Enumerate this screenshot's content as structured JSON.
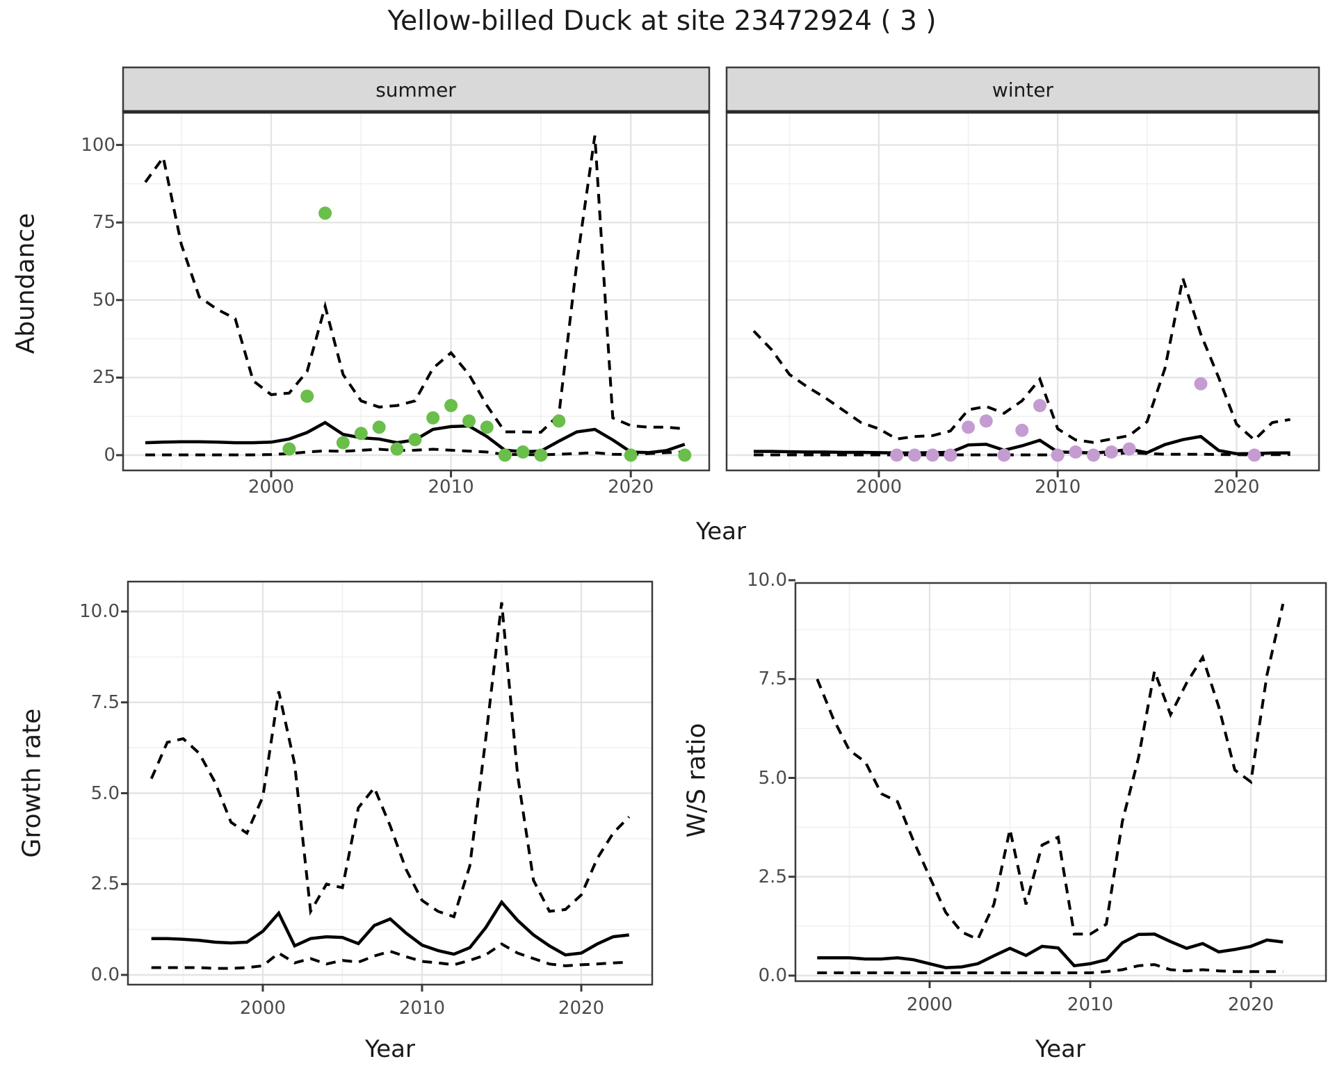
{
  "title": "Yellow-billed Duck at site 23472924 ( 3 )",
  "facet_labels": {
    "summer": "summer",
    "winter": "winter"
  },
  "axis_labels": {
    "top_y": "Abundance",
    "top_x": "Year",
    "growth_y": "Growth rate",
    "growth_x": "Year",
    "ws_y": "W/S ratio",
    "ws_x": "Year"
  },
  "colors": {
    "summer_points": "#6ABE4A",
    "winter_points": "#C49CD2",
    "line": "#000000",
    "grid_major": "#e4e4e4",
    "grid_minor": "#f0f0f0",
    "panel_border": "#3a3a3a",
    "strip_bg": "#d9d9d9",
    "tick_text": "#4a4a4a"
  },
  "chart_data": [
    {
      "id": "summer",
      "type": "line",
      "facet": "summer",
      "title": "Yellow-billed Duck at site 23472924 ( 3 )",
      "xlabel": "Year",
      "ylabel": "Abundance",
      "xlim": [
        1991.5,
        2024.5
      ],
      "ylim": [
        0,
        110
      ],
      "x_ticks": {
        "values": [
          2000,
          2010,
          2020
        ],
        "labels": [
          "2000",
          "2010",
          "2020"
        ]
      },
      "y_ticks": {
        "values": [
          0,
          25,
          50,
          75,
          100
        ],
        "labels": [
          "0",
          "25",
          "50",
          "75",
          "100"
        ]
      },
      "x_minor": [
        1995,
        2005,
        2015
      ],
      "y_minor": [
        12.5,
        37.5,
        62.5,
        87.5,
        112.5
      ],
      "series": [
        {
          "name": "ci_lower",
          "style": "dashed",
          "x": [
            1993,
            1994,
            1995,
            1996,
            1997,
            1998,
            1999,
            2000,
            2001,
            2002,
            2003,
            2004,
            2005,
            2006,
            2007,
            2008,
            2009,
            2010,
            2011,
            2012,
            2013,
            2014,
            2015,
            2016,
            2017,
            2018,
            2019,
            2020,
            2021,
            2022,
            2023
          ],
          "y": [
            0.1,
            0.1,
            0.1,
            0.1,
            0.1,
            0.1,
            0.1,
            0.2,
            0.5,
            1,
            1.4,
            1.2,
            1.6,
            1.9,
            1.5,
            1.6,
            1.9,
            1.6,
            1.3,
            1,
            0.2,
            0.2,
            0.1,
            0.3,
            0.5,
            0.8,
            0.3,
            0.2,
            0.5,
            0.8,
            1
          ]
        },
        {
          "name": "ci_upper",
          "style": "dashed",
          "x": [
            1993,
            1994,
            1995,
            1996,
            1997,
            1998,
            1999,
            2000,
            2001,
            2002,
            2003,
            2004,
            2005,
            2006,
            2007,
            2008,
            2009,
            2010,
            2011,
            2012,
            2013,
            2014,
            2015,
            2016,
            2017,
            2018,
            2019,
            2020,
            2021,
            2022,
            2023
          ],
          "y": [
            88,
            96,
            68,
            51,
            47,
            44,
            24,
            19.5,
            20,
            27,
            48,
            26,
            17.5,
            15.5,
            16,
            17.5,
            28,
            33,
            26,
            16,
            7.5,
            7.5,
            7.4,
            13,
            62,
            103,
            12,
            9.5,
            9,
            9,
            8.5
          ]
        },
        {
          "name": "median",
          "style": "solid",
          "x": [
            1993,
            1994,
            1995,
            1996,
            1997,
            1998,
            1999,
            2000,
            2001,
            2002,
            2003,
            2004,
            2005,
            2006,
            2007,
            2008,
            2009,
            2010,
            2011,
            2012,
            2013,
            2014,
            2015,
            2016,
            2017,
            2018,
            2019,
            2020,
            2021,
            2022,
            2023
          ],
          "y": [
            4,
            4.2,
            4.3,
            4.3,
            4.2,
            4,
            4,
            4.2,
            5.2,
            7.3,
            10.5,
            6.7,
            5.6,
            5.2,
            4,
            4.9,
            8.3,
            9.2,
            9.4,
            6,
            1.6,
            1.1,
            1.3,
            4.5,
            7.5,
            8.3,
            4.9,
            1,
            0.8,
            1.5,
            3.5
          ]
        }
      ],
      "points": {
        "name": "observed_abundance",
        "color": "#6ABE4A",
        "x": [
          2001,
          2002,
          2003,
          2004,
          2005,
          2006,
          2007,
          2008,
          2009,
          2010,
          2011,
          2012,
          2013,
          2014,
          2015,
          2016,
          2020,
          2023
        ],
        "y": [
          2,
          19,
          78,
          4,
          7,
          9,
          2,
          5,
          12,
          16,
          11,
          9,
          0,
          1,
          0,
          11,
          0,
          0
        ]
      }
    },
    {
      "id": "winter",
      "type": "line",
      "facet": "winter",
      "title": "Yellow-billed Duck at site 23472924 ( 3 )",
      "xlabel": "Year",
      "ylabel": "Abundance",
      "xlim": [
        1991.5,
        2024.5
      ],
      "ylim": [
        0,
        110
      ],
      "x_ticks": {
        "values": [
          2000,
          2010,
          2020
        ],
        "labels": [
          "2000",
          "2010",
          "2020"
        ]
      },
      "y_ticks": {
        "values": [
          0,
          25,
          50,
          75,
          100
        ],
        "labels": [
          "0",
          "25",
          "50",
          "75",
          "100"
        ]
      },
      "x_minor": [
        1995,
        2005,
        2015
      ],
      "y_minor": [
        12.5,
        37.5,
        62.5,
        87.5,
        112.5
      ],
      "series": [
        {
          "name": "ci_lower",
          "style": "dashed",
          "x": [
            1993,
            1994,
            1995,
            1996,
            1997,
            1998,
            1999,
            2000,
            2001,
            2002,
            2003,
            2004,
            2005,
            2006,
            2007,
            2008,
            2009,
            2010,
            2011,
            2012,
            2013,
            2014,
            2015,
            2016,
            2017,
            2018,
            2019,
            2020,
            2021,
            2022,
            2023
          ],
          "y": [
            0.1,
            0.1,
            0.1,
            0.1,
            0.1,
            0.1,
            0.1,
            0.1,
            0.1,
            0.1,
            0.1,
            0.1,
            0.1,
            0.1,
            0.1,
            0.1,
            0.1,
            0.1,
            0.1,
            0.1,
            0.3,
            0.8,
            0.5,
            0.3,
            0.3,
            0.3,
            0.2,
            0.15,
            0.1,
            0.15,
            0.2
          ]
        },
        {
          "name": "ci_upper",
          "style": "dashed",
          "x": [
            1993,
            1994,
            1995,
            1996,
            1997,
            1998,
            1999,
            2000,
            2001,
            2002,
            2003,
            2004,
            2005,
            2006,
            2007,
            2008,
            2009,
            2010,
            2011,
            2012,
            2013,
            2014,
            2015,
            2016,
            2017,
            2018,
            2019,
            2020,
            2021,
            2022,
            2023
          ],
          "y": [
            40,
            34,
            26,
            22,
            18.5,
            14.5,
            10.5,
            8.5,
            5.2,
            6,
            6.3,
            7.8,
            14.6,
            15.7,
            13.5,
            17.5,
            24.5,
            8.5,
            4.9,
            4.1,
            5.2,
            6.3,
            10.8,
            28,
            57,
            39,
            25,
            10,
            4.9,
            10.5,
            11.5
          ]
        },
        {
          "name": "median",
          "style": "solid",
          "x": [
            1993,
            1994,
            1995,
            1996,
            1997,
            1998,
            1999,
            2000,
            2001,
            2002,
            2003,
            2004,
            2005,
            2006,
            2007,
            2008,
            2009,
            2010,
            2011,
            2012,
            2013,
            2014,
            2015,
            2016,
            2017,
            2018,
            2019,
            2020,
            2021,
            2022,
            2023
          ],
          "y": [
            1.2,
            1.2,
            1.1,
            1,
            1,
            0.9,
            0.9,
            0.8,
            0.7,
            0.7,
            0.8,
            0.9,
            3.3,
            3.5,
            1.6,
            3,
            4.8,
            1,
            0.9,
            0.7,
            1.1,
            1.9,
            0.8,
            3.4,
            5,
            6,
            1.5,
            0.45,
            0.5,
            0.7,
            0.75
          ]
        }
      ],
      "points": {
        "name": "observed_abundance",
        "color": "#C49CD2",
        "x": [
          2001,
          2002,
          2003,
          2004,
          2005,
          2006,
          2007,
          2008,
          2009,
          2010,
          2011,
          2012,
          2013,
          2014,
          2018,
          2021
        ],
        "y": [
          0,
          0,
          0,
          0,
          9,
          11,
          0,
          8,
          16,
          0,
          1,
          0,
          1,
          2,
          23,
          0
        ]
      }
    },
    {
      "id": "growth_rate",
      "type": "line",
      "title": "Growth rate",
      "xlabel": "Year",
      "ylabel": "Growth rate",
      "xlim": [
        1991.5,
        2024.5
      ],
      "ylim": [
        0,
        10.8
      ],
      "x_ticks": {
        "values": [
          2000,
          2010,
          2020
        ],
        "labels": [
          "2000",
          "2010",
          "2020"
        ]
      },
      "y_ticks": {
        "values": [
          0,
          2.5,
          5,
          7.5,
          10
        ],
        "labels": [
          "0.0",
          "2.5",
          "5.0",
          "7.5",
          "10.0"
        ]
      },
      "x_minor": [
        1995,
        2005,
        2015
      ],
      "y_minor": [
        1.25,
        3.75,
        6.25,
        8.75
      ],
      "series": [
        {
          "name": "ci_lower",
          "style": "dashed",
          "x": [
            1993,
            1994,
            1995,
            1996,
            1997,
            1998,
            1999,
            2000,
            2001,
            2002,
            2003,
            2004,
            2005,
            2006,
            2007,
            2008,
            2009,
            2010,
            2011,
            2012,
            2013,
            2014,
            2015,
            2016,
            2017,
            2018,
            2019,
            2020,
            2021,
            2022,
            2023
          ],
          "y": [
            0.2,
            0.2,
            0.2,
            0.2,
            0.18,
            0.18,
            0.2,
            0.25,
            0.6,
            0.33,
            0.45,
            0.3,
            0.4,
            0.35,
            0.52,
            0.65,
            0.5,
            0.37,
            0.33,
            0.28,
            0.4,
            0.55,
            0.85,
            0.6,
            0.45,
            0.3,
            0.25,
            0.28,
            0.3,
            0.33,
            0.35
          ]
        },
        {
          "name": "ci_upper",
          "style": "dashed",
          "x": [
            1993,
            1994,
            1995,
            1996,
            1997,
            1998,
            1999,
            2000,
            2001,
            2002,
            2003,
            2004,
            2005,
            2006,
            2007,
            2008,
            2009,
            2010,
            2011,
            2012,
            2013,
            2014,
            2015,
            2016,
            2017,
            2018,
            2019,
            2020,
            2021,
            2022,
            2023
          ],
          "y": [
            5.4,
            6.4,
            6.5,
            6.1,
            5.3,
            4.2,
            3.9,
            4.9,
            7.8,
            5.8,
            1.75,
            2.5,
            2.4,
            4.6,
            5.15,
            4.1,
            2.9,
            2.05,
            1.75,
            1.6,
            3,
            6.5,
            10.25,
            5.5,
            2.6,
            1.75,
            1.8,
            2.2,
            3.2,
            3.9,
            4.35
          ]
        },
        {
          "name": "median",
          "style": "solid",
          "x": [
            1993,
            1994,
            1995,
            1996,
            1997,
            1998,
            1999,
            2000,
            2001,
            2002,
            2003,
            2004,
            2005,
            2006,
            2007,
            2008,
            2009,
            2010,
            2011,
            2012,
            2013,
            2014,
            2015,
            2016,
            2017,
            2018,
            2019,
            2020,
            2021,
            2022,
            2023
          ],
          "y": [
            1,
            1,
            0.98,
            0.95,
            0.9,
            0.88,
            0.9,
            1.2,
            1.7,
            0.8,
            1,
            1.05,
            1.03,
            0.86,
            1.36,
            1.54,
            1.15,
            0.82,
            0.67,
            0.57,
            0.75,
            1.3,
            2,
            1.5,
            1.1,
            0.8,
            0.55,
            0.6,
            0.85,
            1.05,
            1.1
          ]
        }
      ]
    },
    {
      "id": "ws_ratio",
      "type": "line",
      "title": "W/S ratio",
      "xlabel": "Year",
      "ylabel": "W/S ratio",
      "xlim": [
        1991.5,
        2024.5
      ],
      "ylim": [
        0,
        9.9
      ],
      "x_ticks": {
        "values": [
          2000,
          2010,
          2020
        ],
        "labels": [
          "2000",
          "2010",
          "2020"
        ]
      },
      "y_ticks": {
        "values": [
          0,
          2.5,
          5,
          7.5,
          10
        ],
        "labels": [
          "0.0",
          "2.5",
          "5.0",
          "7.5",
          "10.0"
        ]
      },
      "x_minor": [
        1995,
        2005,
        2015
      ],
      "y_minor": [
        1.25,
        3.75,
        6.25,
        8.75
      ],
      "series": [
        {
          "name": "ci_lower",
          "style": "dashed",
          "x": [
            1993,
            1994,
            1995,
            1996,
            1997,
            1998,
            1999,
            2000,
            2001,
            2002,
            2003,
            2004,
            2005,
            2006,
            2007,
            2008,
            2009,
            2010,
            2011,
            2012,
            2013,
            2014,
            2015,
            2016,
            2017,
            2018,
            2019,
            2020,
            2021,
            2022
          ],
          "y": [
            0.07,
            0.07,
            0.07,
            0.07,
            0.07,
            0.07,
            0.07,
            0.07,
            0.07,
            0.07,
            0.07,
            0.07,
            0.07,
            0.07,
            0.07,
            0.07,
            0.07,
            0.07,
            0.1,
            0.15,
            0.25,
            0.28,
            0.15,
            0.12,
            0.15,
            0.12,
            0.1,
            0.1,
            0.1,
            0.1
          ]
        },
        {
          "name": "ci_upper",
          "style": "dashed",
          "x": [
            1993,
            1994,
            1995,
            1996,
            1997,
            1998,
            1999,
            2000,
            2001,
            2002,
            2003,
            2004,
            2005,
            2006,
            2007,
            2008,
            2009,
            2010,
            2011,
            2012,
            2013,
            2014,
            2015,
            2016,
            2017,
            2018,
            2019,
            2020,
            2021,
            2022
          ],
          "y": [
            7.5,
            6.5,
            5.7,
            5.4,
            4.6,
            4.4,
            3.4,
            2.5,
            1.6,
            1.1,
            0.92,
            1.8,
            3.7,
            1.8,
            3.3,
            3.5,
            1.05,
            1.05,
            1.3,
            3.9,
            5.5,
            7.7,
            6.6,
            7.4,
            8.05,
            6.8,
            5.2,
            4.9,
            7.6,
            9.4
          ]
        },
        {
          "name": "median",
          "style": "solid",
          "x": [
            1993,
            1994,
            1995,
            1996,
            1997,
            1998,
            1999,
            2000,
            2001,
            2002,
            2003,
            2004,
            2005,
            2006,
            2007,
            2008,
            2009,
            2010,
            2011,
            2012,
            2013,
            2014,
            2015,
            2016,
            2017,
            2018,
            2019,
            2020,
            2021,
            2022
          ],
          "y": [
            0.45,
            0.45,
            0.45,
            0.42,
            0.42,
            0.45,
            0.4,
            0.3,
            0.2,
            0.22,
            0.3,
            0.5,
            0.69,
            0.51,
            0.74,
            0.7,
            0.25,
            0.3,
            0.4,
            0.83,
            1.04,
            1.05,
            0.86,
            0.69,
            0.81,
            0.6,
            0.66,
            0.74,
            0.9,
            0.85
          ]
        }
      ]
    }
  ]
}
